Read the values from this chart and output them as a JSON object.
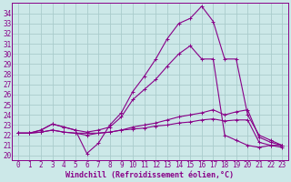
{
  "background_color": "#cce8e8",
  "grid_color": "#aacccc",
  "line_color": "#880088",
  "xlabel": "Windchill (Refroidissement éolien,°C)",
  "xlim": [
    -0.5,
    23.5
  ],
  "ylim": [
    19.5,
    35.0
  ],
  "xticks": [
    0,
    1,
    2,
    3,
    4,
    5,
    6,
    7,
    8,
    9,
    10,
    11,
    12,
    13,
    14,
    15,
    16,
    17,
    18,
    19,
    20,
    21,
    22,
    23
  ],
  "yticks": [
    20,
    21,
    22,
    23,
    24,
    25,
    26,
    27,
    28,
    29,
    30,
    31,
    32,
    33,
    34
  ],
  "series": [
    [
      22.2,
      22.2,
      22.5,
      23.1,
      22.8,
      22.5,
      20.2,
      21.2,
      23.0,
      24.2,
      26.3,
      27.8,
      29.5,
      31.5,
      33.0,
      33.5,
      34.7,
      33.2,
      29.5,
      29.5,
      24.0,
      22.0,
      21.5,
      21.0
    ],
    [
      22.2,
      22.2,
      22.5,
      23.1,
      22.8,
      22.5,
      22.3,
      22.5,
      22.8,
      23.8,
      25.5,
      26.5,
      27.5,
      28.8,
      30.0,
      30.8,
      29.5,
      29.5,
      22.0,
      21.5,
      21.0,
      20.8,
      21.0,
      21.0
    ],
    [
      22.2,
      22.2,
      22.3,
      22.5,
      22.3,
      22.2,
      22.2,
      22.2,
      22.3,
      22.5,
      22.8,
      23.0,
      23.2,
      23.5,
      23.8,
      24.0,
      24.2,
      24.5,
      24.0,
      24.3,
      24.5,
      21.8,
      21.3,
      21.0
    ],
    [
      22.2,
      22.2,
      22.3,
      22.5,
      22.3,
      22.2,
      22.0,
      22.2,
      22.3,
      22.5,
      22.6,
      22.7,
      22.9,
      23.0,
      23.2,
      23.3,
      23.5,
      23.6,
      23.4,
      23.5,
      23.5,
      21.3,
      21.0,
      20.8
    ]
  ],
  "tick_fontsize": 5.5,
  "xlabel_fontsize": 6.0,
  "marker_size": 2.5,
  "linewidth": 0.8
}
